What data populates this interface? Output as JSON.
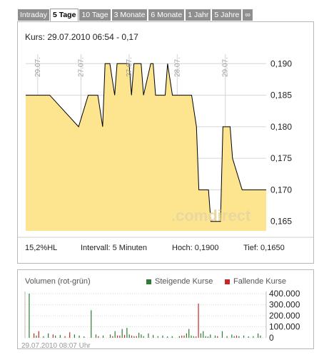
{
  "tabs": [
    {
      "label": "Intraday",
      "active": false
    },
    {
      "label": "5 Tage",
      "active": true
    },
    {
      "label": "10 Tage",
      "active": false
    },
    {
      "label": "3 Monate",
      "active": false
    },
    {
      "label": "6 Monate",
      "active": false
    },
    {
      "label": "1 Jahr",
      "active": false
    },
    {
      "label": "5 Jahre",
      "active": false
    },
    {
      "label": "∞",
      "active": false
    }
  ],
  "price": {
    "kurs_label": "Kurs: 29.07.2010 06:54 - 0,17",
    "watermark": ".comdirect",
    "stats": {
      "change": "15,2%HL",
      "interval": "Intervall: 5 Minuten",
      "high": "Hoch: 0,1900",
      "low": "Tief: 0,1650"
    }
  },
  "volume": {
    "title": "Volumen (rot-grün)",
    "legend_up": "Steigende Kurse",
    "legend_down": "Fallende Kurse",
    "timestamp": "29.07.2010 08:07 Uhr"
  },
  "colors": {
    "fill": "#fde58f",
    "line": "#000000",
    "up": "#2e7d32",
    "down": "#c62828",
    "grid": "#d6d6d6"
  },
  "chart_data": [
    {
      "type": "area",
      "x": [
        0,
        10,
        22,
        26,
        30,
        32,
        33,
        35,
        37,
        38,
        43,
        44,
        45,
        48,
        49,
        52,
        53,
        54,
        58,
        59,
        61,
        62,
        68,
        69,
        71,
        72,
        76,
        77,
        81,
        82,
        85,
        86,
        90,
        91,
        93,
        94,
        99,
        100
      ],
      "y": [
        0.185,
        0.185,
        0.18,
        0.185,
        0.185,
        0.18,
        0.19,
        0.19,
        0.185,
        0.19,
        0.19,
        0.185,
        0.19,
        0.19,
        0.185,
        0.19,
        0.19,
        0.185,
        0.185,
        0.19,
        0.185,
        0.185,
        0.185,
        0.185,
        0.18,
        0.17,
        0.17,
        0.165,
        0.165,
        0.18,
        0.18,
        0.175,
        0.17,
        0.17,
        0.17,
        0.17,
        0.17,
        0.17
      ],
      "xlim": [
        0,
        100
      ],
      "ylim": [
        0.1635,
        0.1915
      ],
      "x_ticks": [
        {
          "x": 5,
          "label": "29.07."
        },
        {
          "x": 23,
          "label": "27.07."
        },
        {
          "x": 43,
          "label": "27.07."
        },
        {
          "x": 63,
          "label": "28.07."
        },
        {
          "x": 83,
          "label": "29.07."
        }
      ],
      "y_ticks": [
        0.19,
        0.185,
        0.18,
        0.175,
        0.17,
        0.165
      ],
      "y_tick_labels": [
        "0,190",
        "0,185",
        "0,180",
        "0,175",
        "0,170",
        "0,165"
      ],
      "grid": true
    },
    {
      "type": "bar",
      "ylim": [
        0,
        420000
      ],
      "y_ticks": [
        0,
        100000,
        200000,
        300000,
        400000
      ],
      "y_tick_labels": [
        "0",
        "100.000",
        "200.000",
        "300.000",
        "400.000"
      ],
      "bars": [
        {
          "x": 1,
          "v": 400000,
          "d": "up"
        },
        {
          "x": 3,
          "v": 40000,
          "d": "down"
        },
        {
          "x": 4,
          "v": 20000,
          "d": "up"
        },
        {
          "x": 5,
          "v": 60000,
          "d": "down"
        },
        {
          "x": 7,
          "v": 15000,
          "d": "up"
        },
        {
          "x": 9,
          "v": 40000,
          "d": "up"
        },
        {
          "x": 11,
          "v": 30000,
          "d": "down"
        },
        {
          "x": 12,
          "v": 20000,
          "d": "up"
        },
        {
          "x": 14,
          "v": 25000,
          "d": "up"
        },
        {
          "x": 16,
          "v": 15000,
          "d": "down"
        },
        {
          "x": 18,
          "v": 50000,
          "d": "down"
        },
        {
          "x": 20,
          "v": 30000,
          "d": "up"
        },
        {
          "x": 22,
          "v": 20000,
          "d": "up"
        },
        {
          "x": 24,
          "v": 12000,
          "d": "up"
        },
        {
          "x": 27,
          "v": 250000,
          "d": "up"
        },
        {
          "x": 29,
          "v": 30000,
          "d": "up"
        },
        {
          "x": 30,
          "v": 15000,
          "d": "down"
        },
        {
          "x": 32,
          "v": 20000,
          "d": "up"
        },
        {
          "x": 35,
          "v": 30000,
          "d": "up"
        },
        {
          "x": 36,
          "v": 15000,
          "d": "down"
        },
        {
          "x": 37,
          "v": 60000,
          "d": "up"
        },
        {
          "x": 38,
          "v": 20000,
          "d": "down"
        },
        {
          "x": 39,
          "v": 20000,
          "d": "down"
        },
        {
          "x": 40,
          "v": 80000,
          "d": "up"
        },
        {
          "x": 41,
          "v": 25000,
          "d": "down"
        },
        {
          "x": 42,
          "v": 90000,
          "d": "up"
        },
        {
          "x": 43,
          "v": 30000,
          "d": "up"
        },
        {
          "x": 44,
          "v": 20000,
          "d": "down"
        },
        {
          "x": 45,
          "v": 15000,
          "d": "up"
        },
        {
          "x": 46,
          "v": 15000,
          "d": "down"
        },
        {
          "x": 47,
          "v": 45000,
          "d": "up"
        },
        {
          "x": 48,
          "v": 30000,
          "d": "up"
        },
        {
          "x": 49,
          "v": 15000,
          "d": "up"
        },
        {
          "x": 51,
          "v": 40000,
          "d": "up"
        },
        {
          "x": 53,
          "v": 25000,
          "d": "up"
        },
        {
          "x": 55,
          "v": 15000,
          "d": "up"
        },
        {
          "x": 57,
          "v": 20000,
          "d": "up"
        },
        {
          "x": 59,
          "v": 12000,
          "d": "up"
        },
        {
          "x": 61,
          "v": 15000,
          "d": "up"
        },
        {
          "x": 64,
          "v": 15000,
          "d": "up"
        },
        {
          "x": 65,
          "v": 20000,
          "d": "down"
        },
        {
          "x": 66,
          "v": 20000,
          "d": "down"
        },
        {
          "x": 67,
          "v": 40000,
          "d": "up"
        },
        {
          "x": 68,
          "v": 80000,
          "d": "up"
        },
        {
          "x": 69,
          "v": 20000,
          "d": "up"
        },
        {
          "x": 70,
          "v": 15000,
          "d": "up"
        },
        {
          "x": 71,
          "v": 12000,
          "d": "down"
        },
        {
          "x": 72,
          "v": 310000,
          "d": "down"
        },
        {
          "x": 73,
          "v": 40000,
          "d": "up"
        },
        {
          "x": 74,
          "v": 60000,
          "d": "up"
        },
        {
          "x": 75,
          "v": 15000,
          "d": "up"
        },
        {
          "x": 76,
          "v": 12000,
          "d": "up"
        },
        {
          "x": 77,
          "v": 30000,
          "d": "up"
        },
        {
          "x": 79,
          "v": 20000,
          "d": "up"
        },
        {
          "x": 80,
          "v": 15000,
          "d": "down"
        },
        {
          "x": 82,
          "v": 60000,
          "d": "up"
        },
        {
          "x": 84,
          "v": 15000,
          "d": "up"
        },
        {
          "x": 86,
          "v": 30000,
          "d": "up"
        },
        {
          "x": 87,
          "v": 15000,
          "d": "up"
        },
        {
          "x": 88,
          "v": 20000,
          "d": "down"
        },
        {
          "x": 89,
          "v": 15000,
          "d": "up"
        },
        {
          "x": 91,
          "v": 20000,
          "d": "up"
        },
        {
          "x": 93,
          "v": 12000,
          "d": "up"
        },
        {
          "x": 95,
          "v": 15000,
          "d": "up"
        },
        {
          "x": 97,
          "v": 40000,
          "d": "up"
        },
        {
          "x": 98,
          "v": 20000,
          "d": "up"
        }
      ]
    }
  ]
}
